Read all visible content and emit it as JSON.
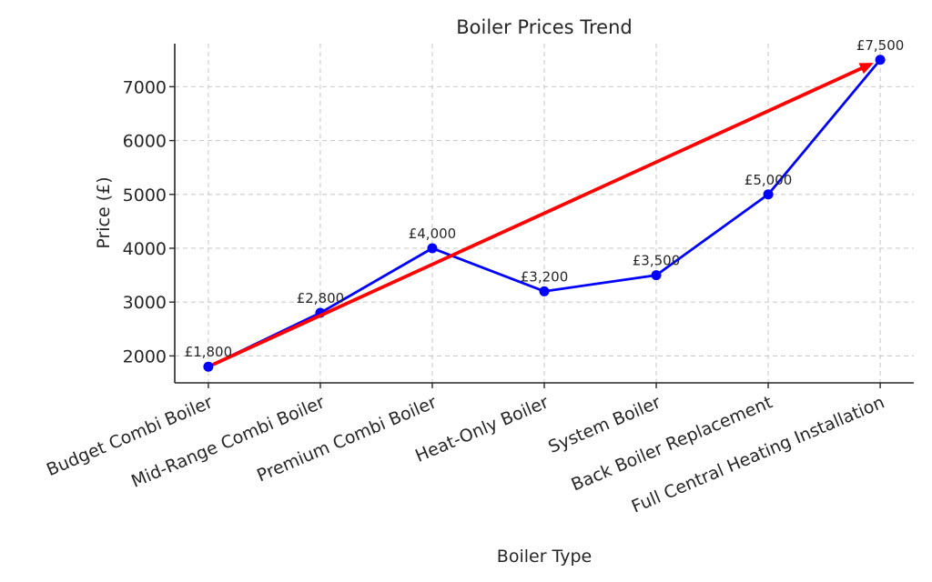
{
  "chart_data": {
    "type": "line",
    "title": "Boiler Prices Trend",
    "xlabel": "Boiler Type",
    "ylabel": "Price (£)",
    "categories": [
      "Budget Combi Boiler",
      "Mid-Range Combi Boiler",
      "Premium Combi Boiler",
      "Heat-Only Boiler",
      "System Boiler",
      "Back Boiler Replacement",
      "Full Central Heating Installation"
    ],
    "series": [
      {
        "name": "Boiler price",
        "kind": "line-with-markers",
        "color": "#0000ff",
        "values": [
          1800,
          2800,
          4000,
          3200,
          3500,
          5000,
          7500
        ]
      },
      {
        "name": "Trend arrow",
        "kind": "arrow",
        "color": "#ff0000",
        "from_index": 0,
        "to_index": 6
      }
    ],
    "annotations": [
      "£1,800",
      "£2,800",
      "£4,000",
      "£3,200",
      "£3,500",
      "£5,000",
      "£7,500"
    ],
    "yticks": [
      2000,
      3000,
      4000,
      5000,
      6000,
      7000
    ],
    "ylim": [
      1500,
      7800
    ],
    "grid": true,
    "legend": "none",
    "colors": {
      "grid": "#cccccc",
      "spine": "#262626",
      "text": "#262626"
    }
  }
}
